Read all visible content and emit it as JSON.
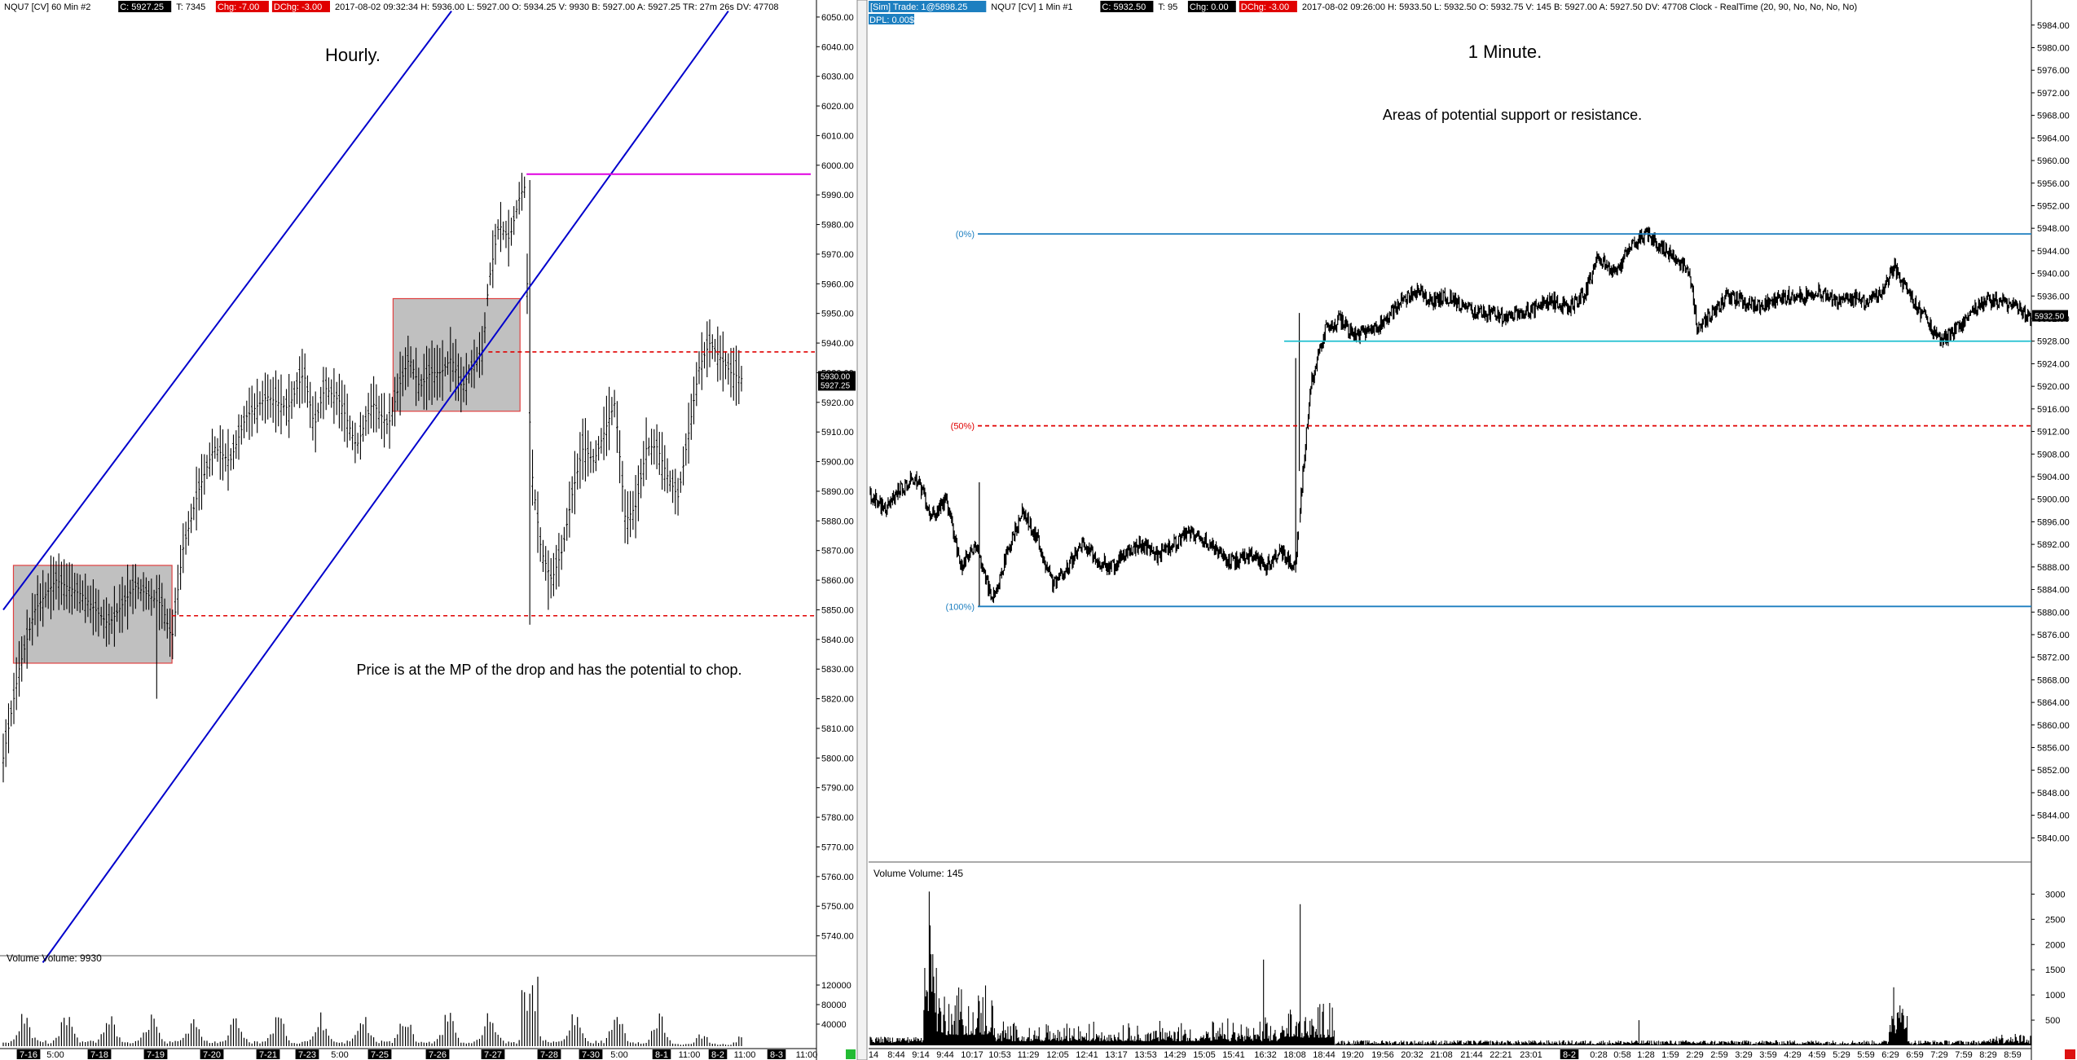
{
  "left_header": [
    {
      "t": "NQU7 [CV]  60 Min   #2",
      "box": ""
    },
    {
      "t": "C: 5927.25",
      "box": "#000"
    },
    {
      "t": "T: 7345",
      "box": ""
    },
    {
      "t": "Chg: -7.00",
      "box": "#e00000"
    },
    {
      "t": "DChg: -3.00",
      "box": "#e00000"
    },
    {
      "t": "2017-08-02 09:32:34  H: 5936.00  L: 5927.00  O: 5934.25  V: 9930  B: 5927.00  A: 5927.25  TR: 27m 26s  DV: 47708",
      "box": ""
    }
  ],
  "right_header": [
    {
      "t": "[Sim]  Trade: 1@5898.25",
      "box": "#1d7fc0"
    },
    {
      "t": "NQU7 [CV]  1 Min   #1",
      "box": ""
    },
    {
      "t": "C: 5932.50",
      "box": "#000"
    },
    {
      "t": "T: 95",
      "box": ""
    },
    {
      "t": "Chg: 0.00",
      "box": "#000"
    },
    {
      "t": "DChg: -3.00",
      "box": "#e00000"
    },
    {
      "t": "2017-08-02 09:26:00  H: 5933.50  L: 5932.50  O: 5932.75  V: 145  B: 5927.00  A: 5927.50  DV: 47708  Clock - RealTime  (20, 90, No, No, No, No)",
      "box": ""
    }
  ],
  "right_dpl": "DPL: 0.00$",
  "annotations": {
    "hourly": "Hourly.",
    "one_minute": "1 Minute.",
    "areas": "Areas of potential support or resistance.",
    "price_note": "Price is at the MP of the drop and has the potential to chop."
  },
  "colors": {
    "channel": "#0000cc",
    "magenta": "#e000e0",
    "red_dash": "#e00000",
    "fib_blue": "#1d7fc0",
    "cyan": "#20c0d0",
    "box_fill": "#c0c0c0",
    "box_border": "#e04040"
  },
  "chart_data": [
    {
      "type": "bar",
      "subtype": "ohlc",
      "title": "NQU7 [CV] 60 Min",
      "ylim": [
        5730,
        6053
      ],
      "y_ticks": [
        "6050.00",
        "6040.00",
        "6030.00",
        "6020.00",
        "6010.00",
        "6000.00",
        "5990.00",
        "5980.00",
        "5970.00",
        "5960.00",
        "5950.00",
        "5940.00",
        "5930.00",
        "5920.00",
        "5910.00",
        "5900.00",
        "5890.00",
        "5880.00",
        "5870.00",
        "5860.00",
        "5850.00",
        "5840.00",
        "5830.00",
        "5820.00",
        "5810.00",
        "5800.00",
        "5790.00",
        "5780.00",
        "5770.00",
        "5760.00",
        "5750.00",
        "5740.00"
      ],
      "last_price_label": "5927.25",
      "last_price_tag": "5930.00",
      "x_ticks": [
        {
          "label": "7-16",
          "box": true
        },
        {
          "label": "5:00",
          "box": false
        },
        {
          "label": "7-18",
          "box": true
        },
        {
          "label": "7-19",
          "box": true
        },
        {
          "label": "7-20",
          "box": true
        },
        {
          "label": "7-21",
          "box": true
        },
        {
          "label": "7-23",
          "box": true
        },
        {
          "label": "5:00",
          "box": false
        },
        {
          "label": "7-25",
          "box": true
        },
        {
          "label": "7-26",
          "box": true
        },
        {
          "label": "7-27",
          "box": true
        },
        {
          "label": "7-28",
          "box": true
        },
        {
          "label": "7-30",
          "box": true
        },
        {
          "label": "5:00",
          "box": false
        },
        {
          "label": "8-1",
          "box": true
        },
        {
          "label": "11:00",
          "box": false
        },
        {
          "label": "8-2",
          "box": true
        },
        {
          "label": "11:00",
          "box": false
        },
        {
          "label": "8-3",
          "box": true
        },
        {
          "label": "11:00",
          "box": false
        }
      ],
      "path_keypoints": [
        [
          0,
          5800
        ],
        [
          6,
          5830
        ],
        [
          12,
          5850
        ],
        [
          20,
          5860
        ],
        [
          30,
          5855
        ],
        [
          40,
          5845
        ],
        [
          50,
          5858
        ],
        [
          60,
          5852
        ],
        [
          64,
          5840
        ],
        [
          68,
          5870
        ],
        [
          74,
          5890
        ],
        [
          80,
          5905
        ],
        [
          86,
          5900
        ],
        [
          92,
          5915
        ],
        [
          100,
          5922
        ],
        [
          108,
          5918
        ],
        [
          114,
          5930
        ],
        [
          118,
          5912
        ],
        [
          122,
          5925
        ],
        [
          128,
          5920
        ],
        [
          134,
          5905
        ],
        [
          140,
          5920
        ],
        [
          146,
          5912
        ],
        [
          150,
          5925
        ],
        [
          154,
          5935
        ],
        [
          158,
          5925
        ],
        [
          162,
          5930
        ],
        [
          166,
          5930
        ],
        [
          170,
          5935
        ],
        [
          174,
          5925
        ],
        [
          178,
          5932
        ],
        [
          182,
          5938
        ],
        [
          184,
          5960
        ],
        [
          188,
          5980
        ],
        [
          192,
          5975
        ],
        [
          196,
          5990
        ],
        [
          198,
          5993
        ],
        [
          200,
          5900
        ],
        [
          204,
          5870
        ],
        [
          208,
          5860
        ],
        [
          212,
          5870
        ],
        [
          216,
          5890
        ],
        [
          220,
          5905
        ],
        [
          224,
          5900
        ],
        [
          228,
          5910
        ],
        [
          232,
          5920
        ],
        [
          236,
          5880
        ],
        [
          240,
          5885
        ],
        [
          244,
          5905
        ],
        [
          248,
          5905
        ],
        [
          252,
          5895
        ],
        [
          256,
          5888
        ],
        [
          260,
          5910
        ],
        [
          264,
          5932
        ],
        [
          268,
          5940
        ],
        [
          272,
          5935
        ],
        [
          276,
          5930
        ],
        [
          280,
          5928
        ]
      ],
      "volume_label": "Volume  Volume: 9930",
      "volume_ticks": [
        "120000",
        "80000",
        "40000"
      ],
      "overlays": {
        "channel_upper": [
          [
            5850,
            0
          ],
          [
            6052,
            170
          ]
        ],
        "channel_lower": [
          [
            5731,
            15
          ],
          [
            6052,
            275
          ]
        ],
        "magenta_line_price": 5997,
        "red_dash_prices": [
          5937,
          5848
        ],
        "boxes": [
          {
            "price_top": 5865,
            "price_bottom": 5832
          },
          {
            "price_top": 5955,
            "price_bottom": 5917
          }
        ]
      }
    },
    {
      "type": "bar",
      "subtype": "ohlc",
      "title": "NQU7 [CV] 1 Min",
      "ylim": [
        5835,
        5987
      ],
      "y_ticks": [
        "5984.00",
        "5980.00",
        "5976.00",
        "5972.00",
        "5968.00",
        "5964.00",
        "5960.00",
        "5956.00",
        "5952.00",
        "5948.00",
        "5944.00",
        "5940.00",
        "5936.00",
        "5932.00",
        "5928.00",
        "5924.00",
        "5920.00",
        "5916.00",
        "5912.00",
        "5908.00",
        "5904.00",
        "5900.00",
        "5896.00",
        "5892.00",
        "5888.00",
        "5884.00",
        "5880.00",
        "5876.00",
        "5872.00",
        "5868.00",
        "5864.00",
        "5860.00",
        "5856.00",
        "5852.00",
        "5848.00",
        "5844.00",
        "5840.00"
      ],
      "last_price_label": "5932.50",
      "x_ticks": [
        {
          "label": "14",
          "box": false
        },
        {
          "label": "8:44",
          "box": false
        },
        {
          "label": "9:14",
          "box": false
        },
        {
          "label": "9:44",
          "box": false
        },
        {
          "label": "10:17",
          "box": false
        },
        {
          "label": "10:53",
          "box": false
        },
        {
          "label": "11:29",
          "box": false
        },
        {
          "label": "12:05",
          "box": false
        },
        {
          "label": "12:41",
          "box": false
        },
        {
          "label": "13:17",
          "box": false
        },
        {
          "label": "13:53",
          "box": false
        },
        {
          "label": "14:29",
          "box": false
        },
        {
          "label": "15:05",
          "box": false
        },
        {
          "label": "15:41",
          "box": false
        },
        {
          "label": "16:32",
          "box": false
        },
        {
          "label": "18:08",
          "box": false
        },
        {
          "label": "18:44",
          "box": false
        },
        {
          "label": "19:20",
          "box": false
        },
        {
          "label": "19:56",
          "box": false
        },
        {
          "label": "20:32",
          "box": false
        },
        {
          "label": "21:08",
          "box": false
        },
        {
          "label": "21:44",
          "box": false
        },
        {
          "label": "22:21",
          "box": false
        },
        {
          "label": "23:01",
          "box": false
        },
        {
          "label": "8-2",
          "box": true
        },
        {
          "label": "0:28",
          "box": false
        },
        {
          "label": "0:58",
          "box": false
        },
        {
          "label": "1:28",
          "box": false
        },
        {
          "label": "1:59",
          "box": false
        },
        {
          "label": "2:29",
          "box": false
        },
        {
          "label": "2:59",
          "box": false
        },
        {
          "label": "3:29",
          "box": false
        },
        {
          "label": "3:59",
          "box": false
        },
        {
          "label": "4:29",
          "box": false
        },
        {
          "label": "4:59",
          "box": false
        },
        {
          "label": "5:29",
          "box": false
        },
        {
          "label": "5:59",
          "box": false
        },
        {
          "label": "6:29",
          "box": false
        },
        {
          "label": "6:59",
          "box": false
        },
        {
          "label": "7:29",
          "box": false
        },
        {
          "label": "7:59",
          "box": false
        },
        {
          "label": "8:29",
          "box": false
        },
        {
          "label": "8:59",
          "box": false
        }
      ],
      "path_keypoints": [
        [
          0,
          5901
        ],
        [
          4,
          5898
        ],
        [
          8,
          5902
        ],
        [
          12,
          5904
        ],
        [
          16,
          5897
        ],
        [
          20,
          5900
        ],
        [
          24,
          5888
        ],
        [
          28,
          5892
        ],
        [
          32,
          5882
        ],
        [
          36,
          5890
        ],
        [
          40,
          5898
        ],
        [
          44,
          5893
        ],
        [
          48,
          5885
        ],
        [
          52,
          5888
        ],
        [
          56,
          5892
        ],
        [
          60,
          5889
        ],
        [
          64,
          5888
        ],
        [
          68,
          5891
        ],
        [
          72,
          5892
        ],
        [
          76,
          5890
        ],
        [
          80,
          5892
        ],
        [
          84,
          5894
        ],
        [
          88,
          5893
        ],
        [
          92,
          5890
        ],
        [
          96,
          5889
        ],
        [
          100,
          5890
        ],
        [
          104,
          5888
        ],
        [
          108,
          5891
        ],
        [
          112,
          5888
        ],
        [
          116,
          5920
        ],
        [
          120,
          5930
        ],
        [
          124,
          5932
        ],
        [
          128,
          5929
        ],
        [
          132,
          5930
        ],
        [
          136,
          5932
        ],
        [
          140,
          5935
        ],
        [
          144,
          5937
        ],
        [
          148,
          5935
        ],
        [
          152,
          5936
        ],
        [
          156,
          5934
        ],
        [
          160,
          5933
        ],
        [
          164,
          5933
        ],
        [
          168,
          5932
        ],
        [
          172,
          5933
        ],
        [
          176,
          5934
        ],
        [
          180,
          5935
        ],
        [
          184,
          5934
        ],
        [
          188,
          5936
        ],
        [
          192,
          5943
        ],
        [
          196,
          5940
        ],
        [
          200,
          5944
        ],
        [
          204,
          5947
        ],
        [
          208,
          5945
        ],
        [
          212,
          5943
        ],
        [
          216,
          5940
        ],
        [
          218,
          5930
        ],
        [
          222,
          5933
        ],
        [
          226,
          5936
        ],
        [
          230,
          5935
        ],
        [
          234,
          5934
        ],
        [
          238,
          5935
        ],
        [
          242,
          5936
        ],
        [
          246,
          5936
        ],
        [
          250,
          5937
        ],
        [
          254,
          5935
        ],
        [
          258,
          5936
        ],
        [
          262,
          5935
        ],
        [
          266,
          5936
        ],
        [
          270,
          5941
        ],
        [
          274,
          5936
        ],
        [
          278,
          5932
        ],
        [
          282,
          5928
        ],
        [
          286,
          5930
        ],
        [
          290,
          5933
        ],
        [
          294,
          5935
        ],
        [
          298,
          5935
        ],
        [
          302,
          5934
        ],
        [
          306,
          5932
        ]
      ],
      "volume_label": "Volume  Volume: 145",
      "volume_ticks": [
        "3000",
        "2500",
        "2000",
        "1500",
        "1000",
        "500"
      ],
      "overlays": {
        "fib_levels": [
          {
            "label": "(0%)",
            "price": 5947
          },
          {
            "label": "(50%)",
            "price": 5913
          },
          {
            "label": "(100%)",
            "price": 5881
          }
        ],
        "cyan_line_price": 5928
      }
    }
  ]
}
